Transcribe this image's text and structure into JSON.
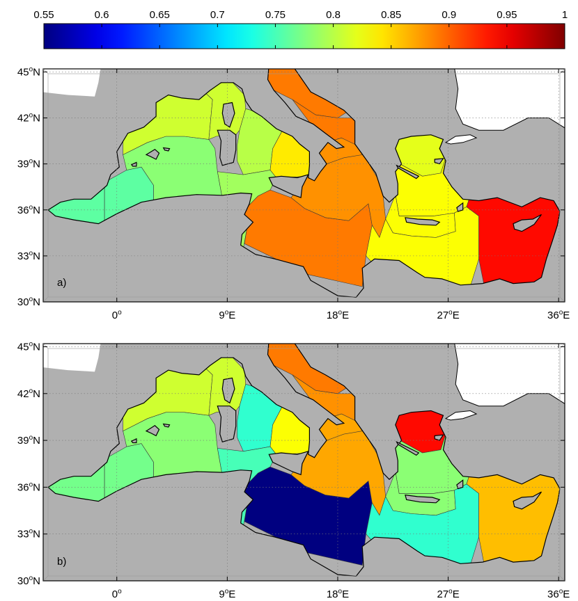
{
  "colorbar": {
    "ticks": [
      "0.55",
      "0.6",
      "0.65",
      "0.7",
      "0.75",
      "0.8",
      "0.85",
      "0.9",
      "0.95",
      "1"
    ],
    "min": 0.55,
    "max": 1,
    "colormap": "jet"
  },
  "axes": {
    "lon_ticks": [
      {
        "v": 0,
        "label": "0",
        "sup": "o",
        "suffix": ""
      },
      {
        "v": 9,
        "label": "9",
        "sup": "o",
        "suffix": "E"
      },
      {
        "v": 18,
        "label": "18",
        "sup": "o",
        "suffix": "E"
      },
      {
        "v": 27,
        "label": "27",
        "sup": "o",
        "suffix": "E"
      },
      {
        "v": 36,
        "label": "36",
        "sup": "o",
        "suffix": "E"
      }
    ],
    "lat_ticks": [
      {
        "v": 45,
        "label": "45",
        "sup": "o",
        "suffix": "N"
      },
      {
        "v": 42,
        "label": "42",
        "sup": "o",
        "suffix": "N"
      },
      {
        "v": 39,
        "label": "39",
        "sup": "o",
        "suffix": "N"
      },
      {
        "v": 36,
        "label": "36",
        "sup": "o",
        "suffix": "N"
      },
      {
        "v": 33,
        "label": "33",
        "sup": "o",
        "suffix": "N"
      },
      {
        "v": 30,
        "label": "30",
        "sup": "o",
        "suffix": "N"
      }
    ],
    "lon_range": [
      -6,
      36.5
    ],
    "lat_range": [
      30,
      45.2
    ]
  },
  "colors": {
    "land": "#b0b0b0",
    "outside": "#ffffff",
    "frame": "#000000"
  },
  "panels": [
    {
      "label": "a)",
      "regions": {
        "alboran_west": 0.76,
        "alboran_east": 0.76,
        "algerian": 0.78,
        "gulf_of_lion": 0.81,
        "ligurian": 0.81,
        "tyrrhenian_north": 0.8,
        "tyrrhenian_south": 0.84,
        "strait_sicily": 0.79,
        "ionian_west": 0.89,
        "ionian_central": 0.88,
        "ionian_north": 0.88,
        "adriatic_north": 0.89,
        "adriatic_south": 0.89,
        "aegean_north": 0.82,
        "aegean_south": 0.83,
        "cretan": 0.83,
        "levantine_west": 0.83,
        "levantine_east": 0.94
      }
    },
    {
      "label": "b)",
      "regions": {
        "alboran_west": 0.77,
        "alboran_east": 0.77,
        "algerian": 0.78,
        "gulf_of_lion": 0.81,
        "ligurian": 0.81,
        "tyrrhenian_north": 0.74,
        "tyrrhenian_south": 0.83,
        "strait_sicily": 0.75,
        "ionian_west": 0.55,
        "ionian_central": 0.87,
        "ionian_north": 0.87,
        "adriatic_north": 0.89,
        "adriatic_south": 0.88,
        "aegean_north": 0.94,
        "aegean_south": 0.78,
        "cretan": 0.78,
        "levantine_west": 0.74,
        "levantine_east": 0.86
      }
    }
  ]
}
